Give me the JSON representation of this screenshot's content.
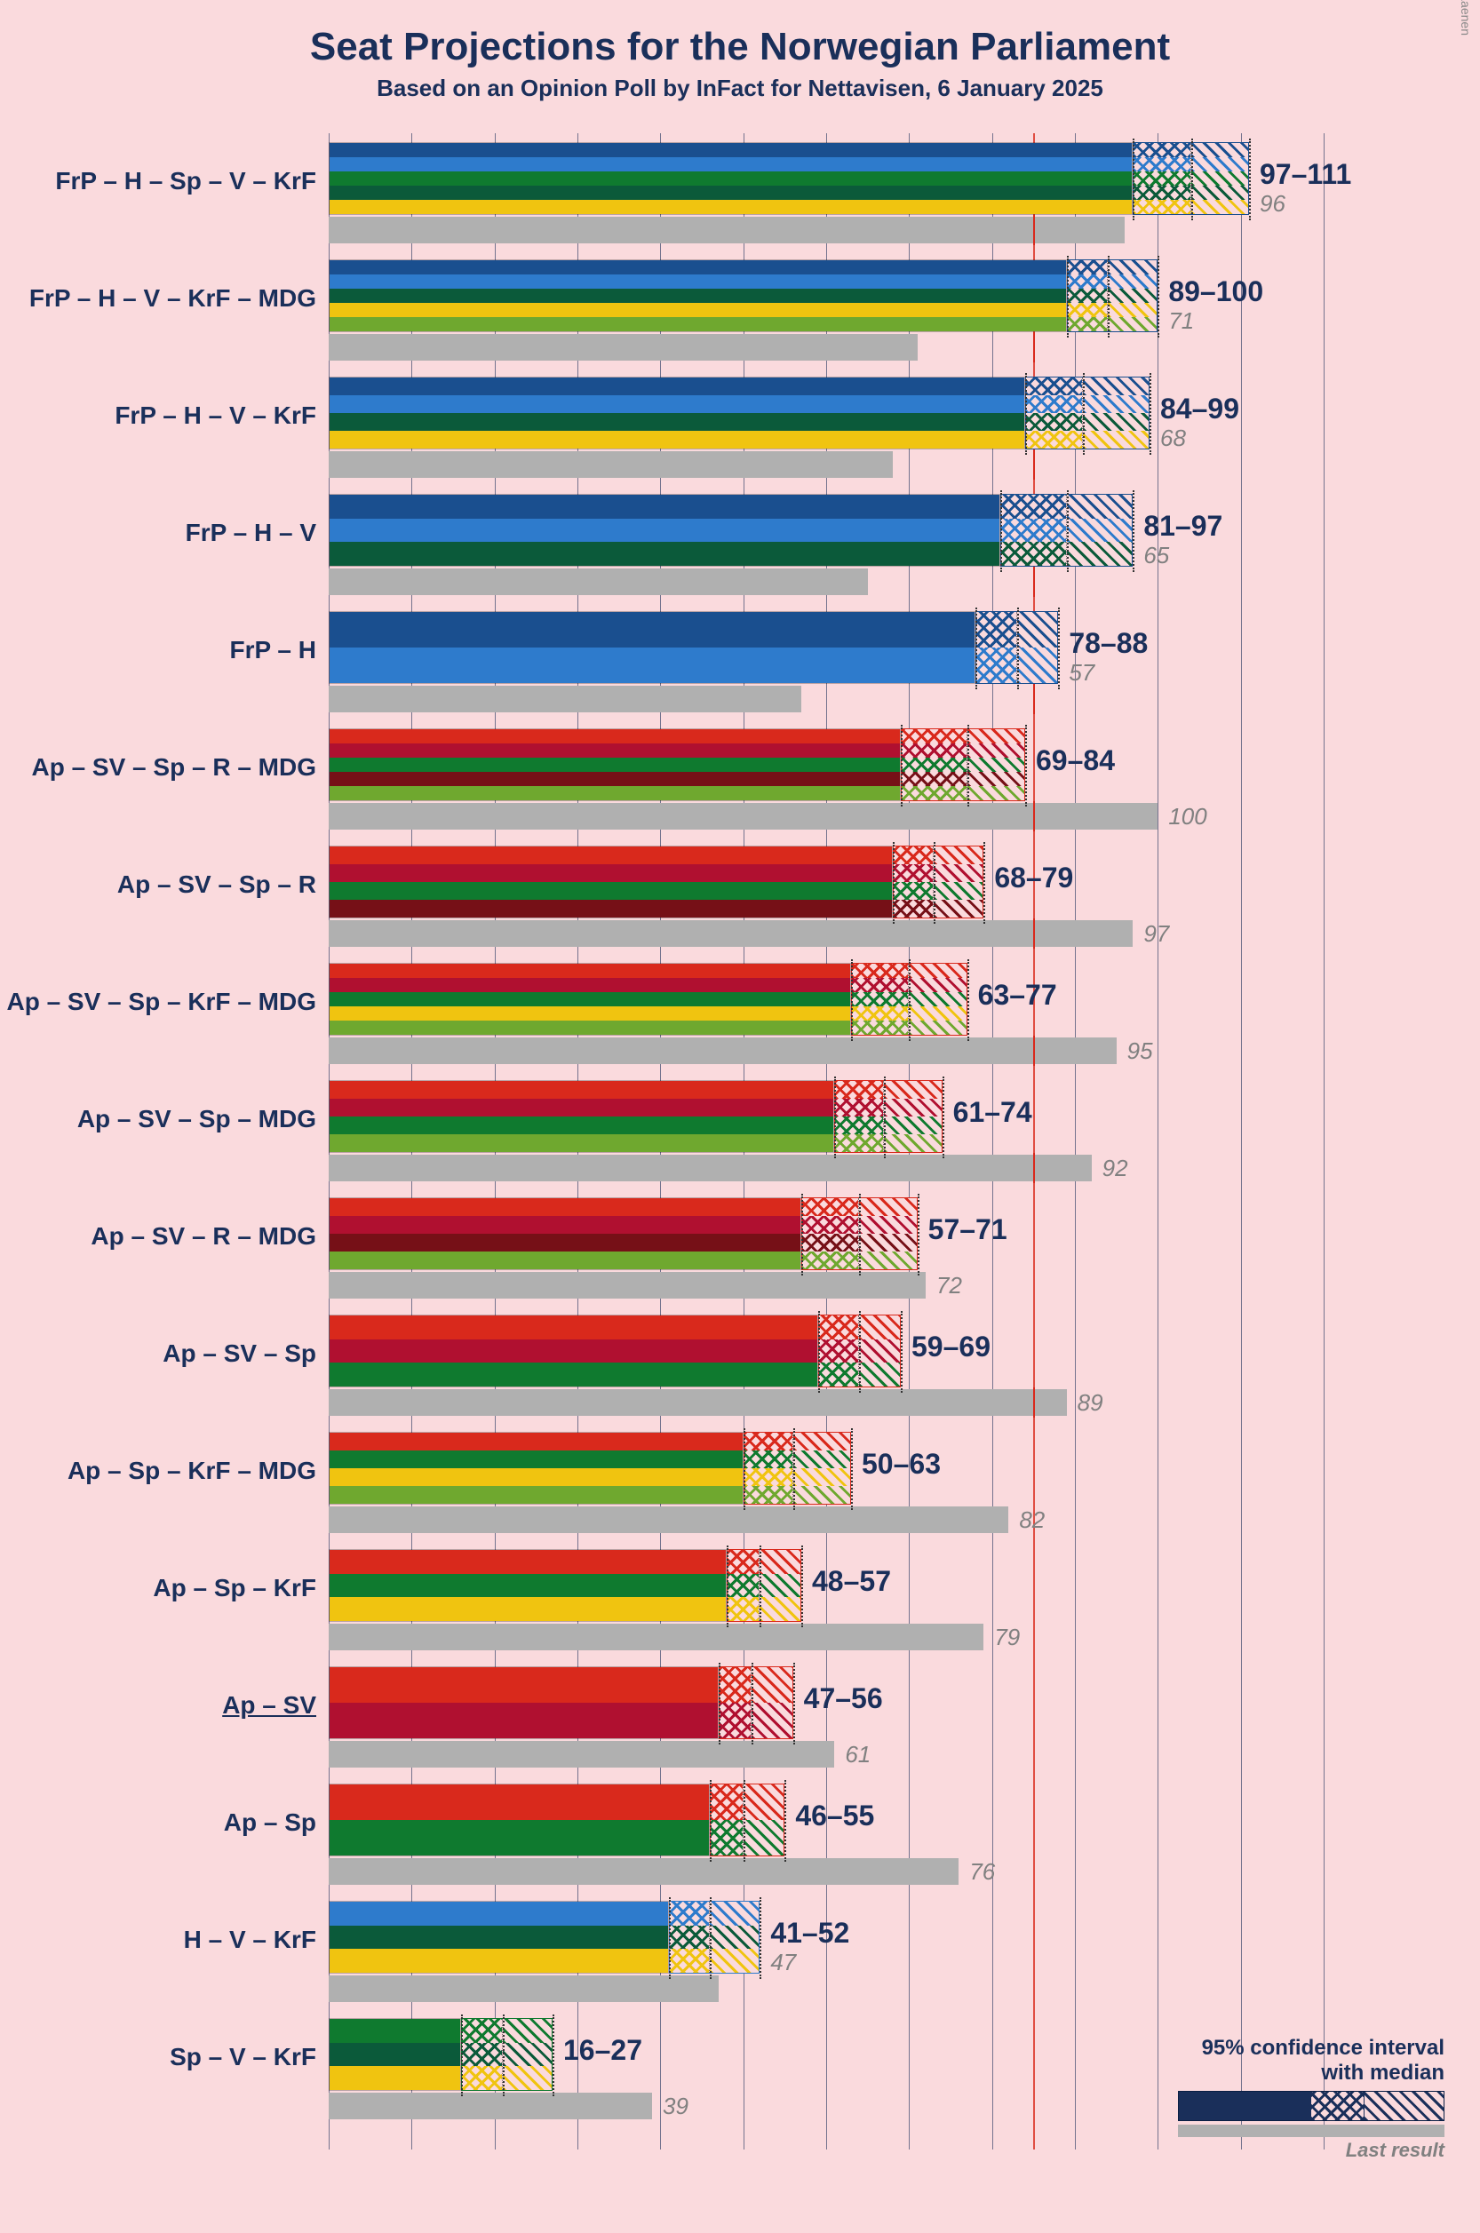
{
  "title": "Seat Projections for the Norwegian Parliament",
  "subtitle": "Based on an Opinion Poll by InFact for Nettavisen, 6 January 2025",
  "copyright": "© 2025 Filip van Laenen",
  "legend": {
    "line1": "95% confidence interval",
    "line2": "with median",
    "last": "Last result"
  },
  "chart": {
    "type": "bar-range",
    "scale_max": 120,
    "grid_step": 10,
    "majority_at": 85,
    "background": "#fadadd",
    "grid_color": "#1a2f5a",
    "majority_color": "#d9291c",
    "last_bar_color": "#b0b0b0",
    "text_color": "#1a2f5a",
    "party_colors": {
      "FrP": "#1a4f8f",
      "H": "#2e7bcc",
      "Sp": "#0f7a2f",
      "V": "#0b5a3a",
      "KrF": "#f0c410",
      "MDG": "#6fa82f",
      "Ap": "#d9291c",
      "SV": "#b01030",
      "R": "#761017"
    },
    "rows": [
      {
        "label": "FrP – H – Sp – V – KrF",
        "parties": [
          "FrP",
          "H",
          "Sp",
          "V",
          "KrF"
        ],
        "low": 97,
        "high": 111,
        "median": 104,
        "last": 96
      },
      {
        "label": "FrP – H – V – KrF – MDG",
        "parties": [
          "FrP",
          "H",
          "V",
          "KrF",
          "MDG"
        ],
        "low": 89,
        "high": 100,
        "median": 94,
        "last": 71
      },
      {
        "label": "FrP – H – V – KrF",
        "parties": [
          "FrP",
          "H",
          "V",
          "KrF"
        ],
        "low": 84,
        "high": 99,
        "median": 91,
        "last": 68
      },
      {
        "label": "FrP – H – V",
        "parties": [
          "FrP",
          "H",
          "V"
        ],
        "low": 81,
        "high": 97,
        "median": 89,
        "last": 65
      },
      {
        "label": "FrP – H",
        "parties": [
          "FrP",
          "H"
        ],
        "low": 78,
        "high": 88,
        "median": 83,
        "last": 57
      },
      {
        "label": "Ap – SV – Sp – R – MDG",
        "parties": [
          "Ap",
          "SV",
          "Sp",
          "R",
          "MDG"
        ],
        "low": 69,
        "high": 84,
        "median": 77,
        "last": 100
      },
      {
        "label": "Ap – SV – Sp – R",
        "parties": [
          "Ap",
          "SV",
          "Sp",
          "R"
        ],
        "low": 68,
        "high": 79,
        "median": 73,
        "last": 97
      },
      {
        "label": "Ap – SV – Sp – KrF – MDG",
        "parties": [
          "Ap",
          "SV",
          "Sp",
          "KrF",
          "MDG"
        ],
        "low": 63,
        "high": 77,
        "median": 70,
        "last": 95
      },
      {
        "label": "Ap – SV – Sp – MDG",
        "parties": [
          "Ap",
          "SV",
          "Sp",
          "MDG"
        ],
        "low": 61,
        "high": 74,
        "median": 67,
        "last": 92
      },
      {
        "label": "Ap – SV – R – MDG",
        "parties": [
          "Ap",
          "SV",
          "R",
          "MDG"
        ],
        "low": 57,
        "high": 71,
        "median": 64,
        "last": 72
      },
      {
        "label": "Ap – SV – Sp",
        "parties": [
          "Ap",
          "SV",
          "Sp"
        ],
        "low": 59,
        "high": 69,
        "median": 64,
        "last": 89
      },
      {
        "label": "Ap – Sp – KrF – MDG",
        "parties": [
          "Ap",
          "Sp",
          "KrF",
          "MDG"
        ],
        "low": 50,
        "high": 63,
        "median": 56,
        "last": 82
      },
      {
        "label": "Ap – Sp – KrF",
        "parties": [
          "Ap",
          "Sp",
          "KrF"
        ],
        "low": 48,
        "high": 57,
        "median": 52,
        "last": 79
      },
      {
        "label": "Ap – SV",
        "parties": [
          "Ap",
          "SV"
        ],
        "low": 47,
        "high": 56,
        "median": 51,
        "last": 61,
        "underline": true
      },
      {
        "label": "Ap – Sp",
        "parties": [
          "Ap",
          "Sp"
        ],
        "low": 46,
        "high": 55,
        "median": 50,
        "last": 76
      },
      {
        "label": "H – V – KrF",
        "parties": [
          "H",
          "V",
          "KrF"
        ],
        "low": 41,
        "high": 52,
        "median": 46,
        "last": 47
      },
      {
        "label": "Sp – V – KrF",
        "parties": [
          "Sp",
          "V",
          "KrF"
        ],
        "low": 16,
        "high": 27,
        "median": 21,
        "last": 39
      }
    ]
  }
}
